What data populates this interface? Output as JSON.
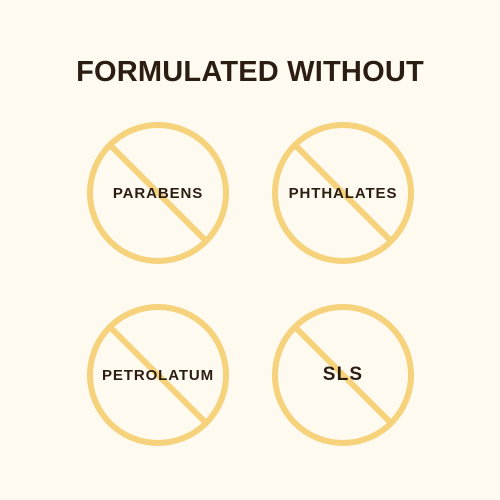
{
  "heading": "FORMULATED WITHOUT",
  "icon": "prohibition-circle-icon",
  "colors": {
    "background": "#fefaef",
    "text": "#2b1d12",
    "accent": "#f5d27b"
  },
  "badges": [
    {
      "label": "PARABENS"
    },
    {
      "label": "PHTHALATES"
    },
    {
      "label": "PETROLATUM"
    },
    {
      "label": "SLS"
    }
  ]
}
